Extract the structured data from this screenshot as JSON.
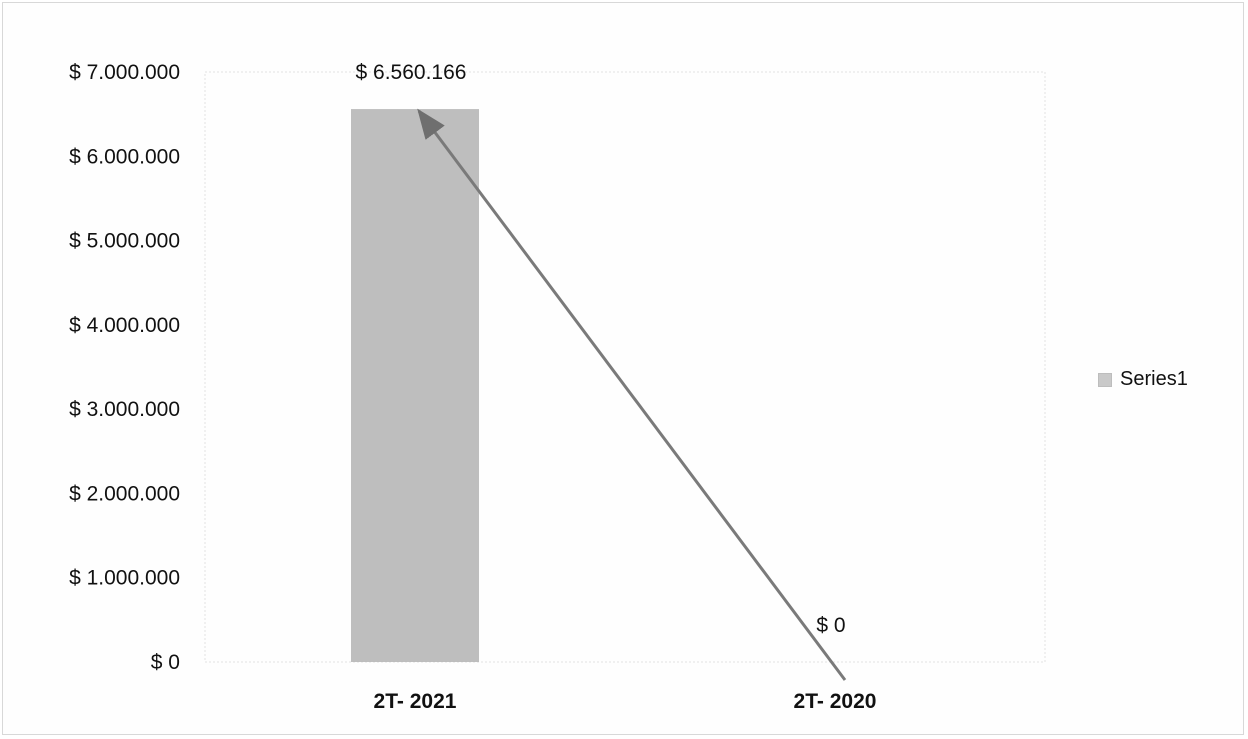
{
  "chart_data": {
    "type": "bar",
    "categories": [
      "2T- 2021",
      "2T- 2020"
    ],
    "series": [
      {
        "name": "Series1",
        "values": [
          6560166,
          0
        ]
      }
    ],
    "data_labels": [
      "$ 6.560.166",
      "$ 0"
    ],
    "y_ticks": [
      0,
      1000000,
      2000000,
      3000000,
      4000000,
      5000000,
      6000000,
      7000000
    ],
    "y_tick_labels": [
      "$ 0",
      "$ 1.000.000",
      "$ 2.000.000",
      "$ 3.000.000",
      "$ 4.000.000",
      "$ 5.000.000",
      "$ 6.000.000",
      "$ 7.000.000"
    ],
    "ylim": [
      0,
      7000000
    ],
    "grid": false,
    "legend_position": "right",
    "annotation": "arrow from the 2T- 2020 category up to the 2T- 2021 bar top",
    "colors": {
      "bar": "#b3b3b3",
      "arrow": "#7a7a7a",
      "text": "#111111",
      "plot_border": "#e2e2e2"
    }
  }
}
